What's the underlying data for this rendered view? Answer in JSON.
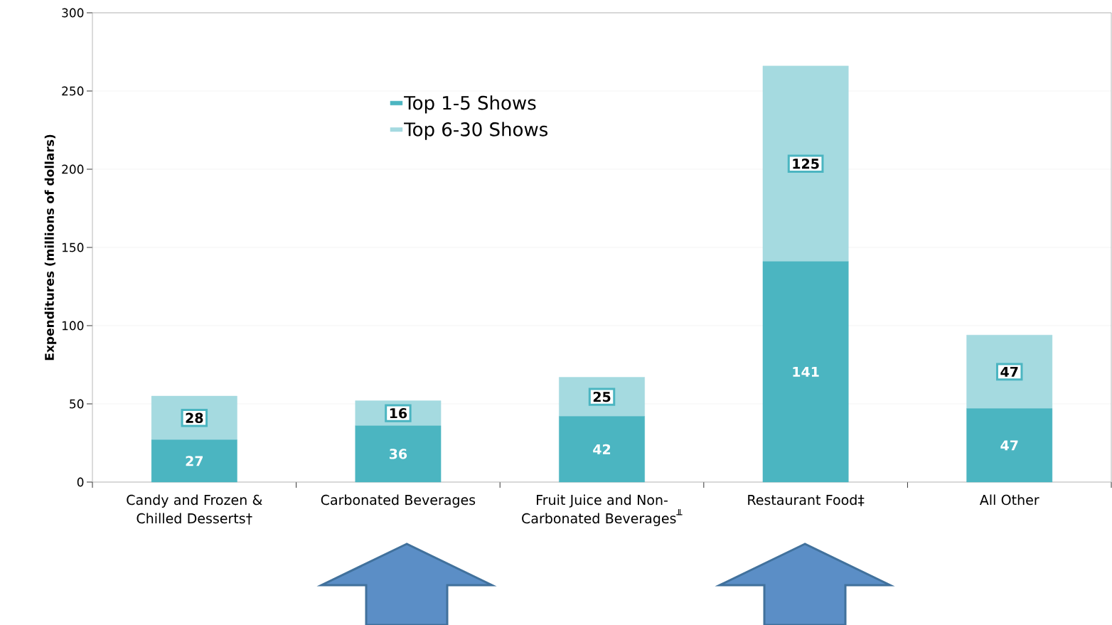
{
  "chart_data": {
    "type": "bar",
    "stacked": true,
    "ylabel": "Expenditures (millions of dollars)",
    "categories": [
      "Candy and Frozen & Chilled Desserts†",
      "Carbonated Beverages",
      "Fruit Juice and Non-Carbonated Beverages$^{╨}$",
      "Restaurant Food‡",
      "All Other"
    ],
    "series": [
      {
        "name": "Top 1-5 Shows",
        "color": "#4bb5c1",
        "values": [
          27,
          36,
          42,
          141,
          47
        ]
      },
      {
        "name": "Top 6-30 Shows",
        "color": "#a5dae0",
        "values": [
          28,
          16,
          25,
          125,
          47
        ]
      }
    ],
    "ylim": [
      0,
      300
    ],
    "yticks": [
      0,
      50,
      100,
      150,
      200,
      250,
      300
    ],
    "grid": "y",
    "legend": "top left",
    "data_labels": true
  }
}
